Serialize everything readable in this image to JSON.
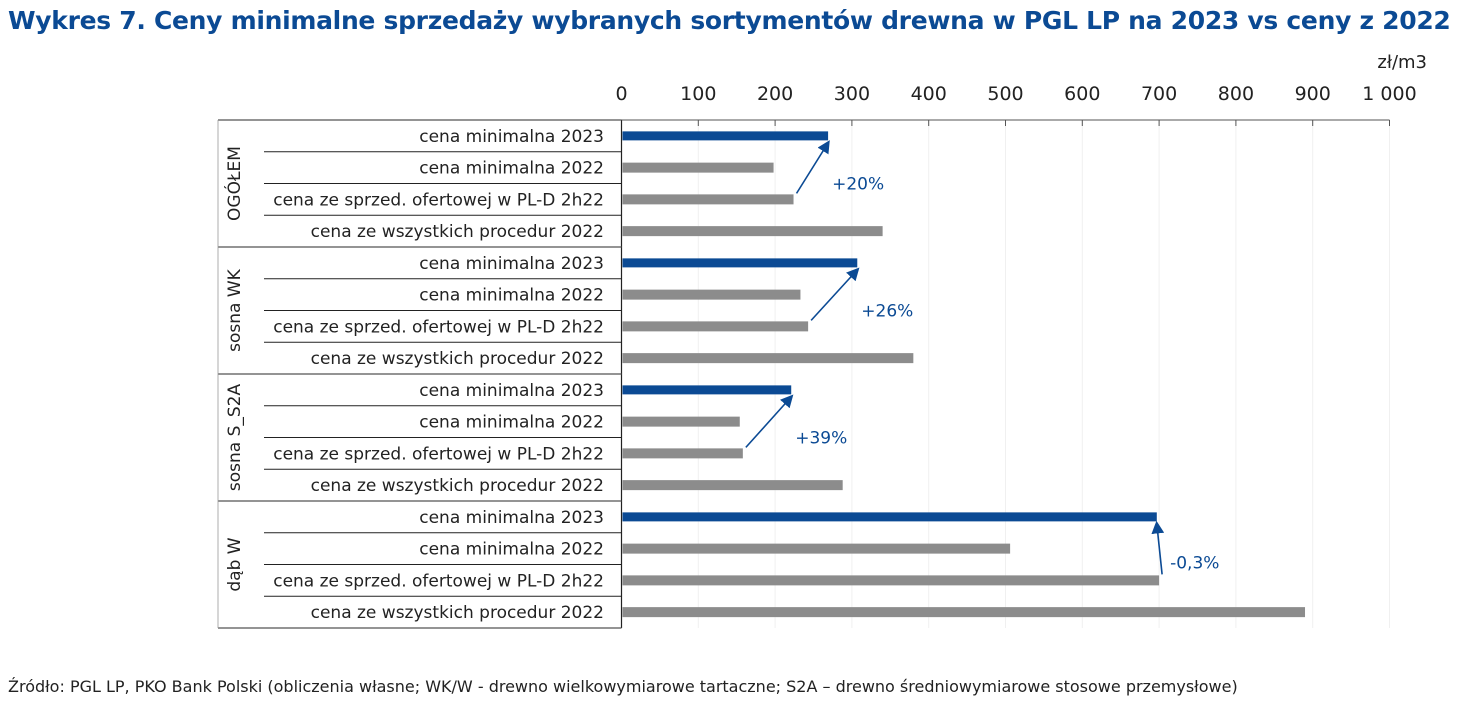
{
  "title": "Wykres 7. Ceny minimalne sprzedaży wybranych sortymentów drewna w PGL LP na 2023 vs ceny z 2022",
  "source": "Źródło: PGL LP, PKO Bank Polski (obliczenia własne; WK/W - drewno wielkowymiarowe tartaczne; S2A – drewno średniowymiarowe stosowe przemysłowe)",
  "chart_data": {
    "type": "bar",
    "orientation": "horizontal",
    "title": "Wykres 7. Ceny minimalne sprzedaży wybranych sortymentów drewna w PGL LP na 2023 vs ceny z 2022",
    "unit_label": "zł/m3",
    "xlim": [
      0,
      1000
    ],
    "ticks": [
      "0",
      "100",
      "200",
      "300",
      "400",
      "500",
      "600",
      "700",
      "800",
      "900",
      "1 000"
    ],
    "tick_values": [
      0,
      100,
      200,
      300,
      400,
      500,
      600,
      700,
      800,
      900,
      1000
    ],
    "grid": true,
    "colors": {
      "highlight": "#0b4a94",
      "other": "#8c8c8c"
    },
    "groups": [
      {
        "name": "OGÓŁEM",
        "annotation": "+20%",
        "rows": [
          {
            "label": "cena minimalna 2023",
            "value": 269,
            "highlight": true
          },
          {
            "label": "cena minimalna 2022",
            "value": 198
          },
          {
            "label": "cena ze sprzed. ofertowej w PL-D 2h22",
            "value": 224
          },
          {
            "label": "cena ze wszystkich procedur 2022",
            "value": 340
          }
        ]
      },
      {
        "name": "sosna WK",
        "annotation": "+26%",
        "rows": [
          {
            "label": "cena minimalna 2023",
            "value": 307,
            "highlight": true
          },
          {
            "label": "cena minimalna 2022",
            "value": 233
          },
          {
            "label": "cena ze sprzed. ofertowej w PL-D 2h22",
            "value": 243
          },
          {
            "label": "cena ze wszystkich procedur 2022",
            "value": 380
          }
        ]
      },
      {
        "name": "sosna S_S2A",
        "annotation": "+39%",
        "rows": [
          {
            "label": "cena minimalna 2023",
            "value": 221,
            "highlight": true
          },
          {
            "label": "cena minimalna 2022",
            "value": 154
          },
          {
            "label": "cena ze sprzed. ofertowej w PL-D 2h22",
            "value": 158
          },
          {
            "label": "cena ze wszystkich procedur 2022",
            "value": 288
          }
        ]
      },
      {
        "name": "dąb W",
        "annotation": "-0,3%",
        "rows": [
          {
            "label": "cena minimalna 2023",
            "value": 697,
            "highlight": true
          },
          {
            "label": "cena minimalna 2022",
            "value": 506
          },
          {
            "label": "cena ze sprzed. ofertowej w PL-D 2h22",
            "value": 700
          },
          {
            "label": "cena ze wszystkich procedur 2022",
            "value": 890
          }
        ]
      }
    ]
  }
}
